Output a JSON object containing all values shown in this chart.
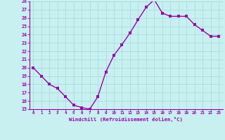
{
  "x": [
    0,
    1,
    2,
    3,
    4,
    5,
    6,
    7,
    8,
    9,
    10,
    11,
    12,
    13,
    14,
    15,
    16,
    17,
    18,
    19,
    20,
    21,
    22,
    23
  ],
  "y": [
    20,
    19,
    18,
    17.5,
    16.5,
    15.5,
    15.2,
    15,
    16.5,
    19.5,
    21.5,
    22.8,
    24.2,
    25.8,
    27.3,
    28.2,
    26.6,
    26.2,
    26.2,
    26.2,
    25.2,
    24.5,
    23.8,
    23.8
  ],
  "line_color": "#9900aa",
  "marker_color": "#9900aa",
  "bg_color": "#c8f0f0",
  "grid_color": "#aadddd",
  "xlabel": "Windchill (Refroidissement éolien,°C)",
  "xlabel_color": "#9900aa",
  "tick_color": "#9900aa",
  "ylim": [
    15,
    28
  ],
  "xlim": [
    -0.5,
    23.5
  ],
  "yticks": [
    15,
    16,
    17,
    18,
    19,
    20,
    21,
    22,
    23,
    24,
    25,
    26,
    27,
    28
  ],
  "xticks": [
    0,
    1,
    2,
    3,
    4,
    5,
    6,
    7,
    8,
    9,
    10,
    11,
    12,
    13,
    14,
    15,
    16,
    17,
    18,
    19,
    20,
    21,
    22,
    23
  ],
  "axis_line_color": "#9900aa",
  "marker_size": 2.5,
  "line_width": 1.0
}
